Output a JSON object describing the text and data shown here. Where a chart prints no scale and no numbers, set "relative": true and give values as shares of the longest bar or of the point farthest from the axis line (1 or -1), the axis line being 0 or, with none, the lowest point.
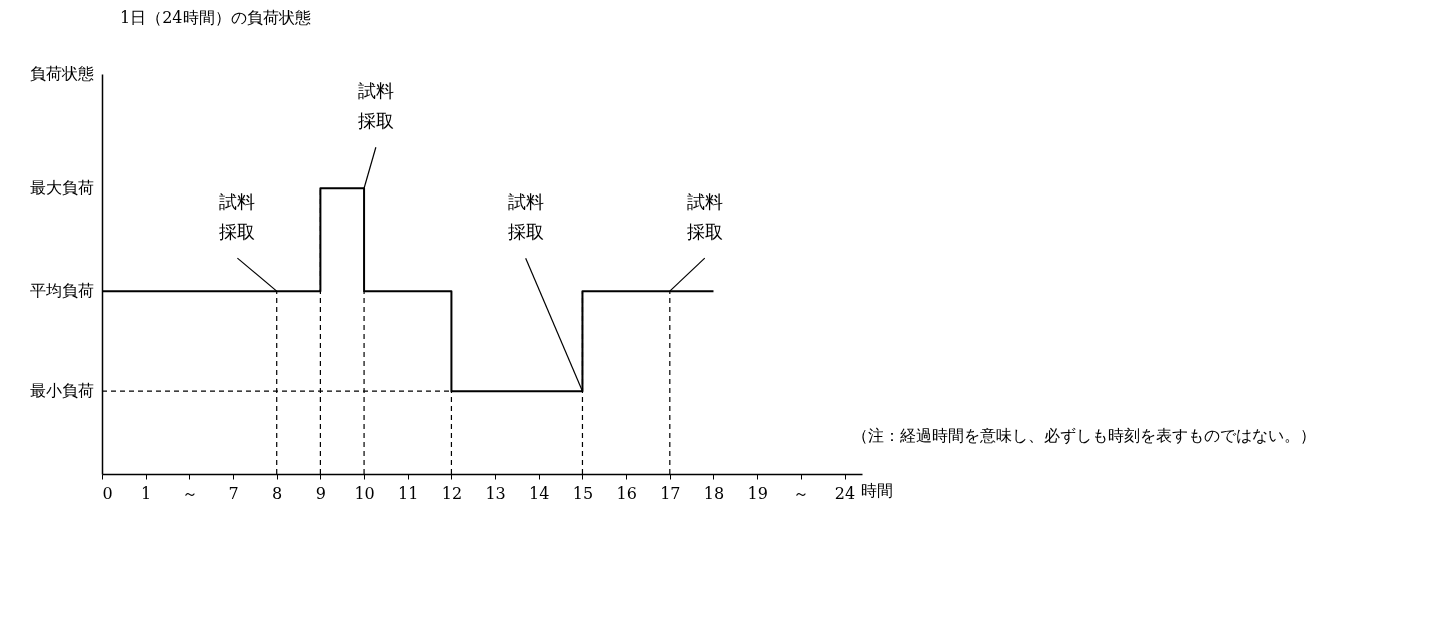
{
  "chart_data": {
    "type": "step",
    "relative": true,
    "title": "1日（24時間）の負荷状態",
    "xlabel": "時間",
    "categories": [
      "0",
      "1",
      "～",
      "7",
      "8",
      "9",
      "10",
      "11",
      "12",
      "13",
      "14",
      "15",
      "16",
      "17",
      "18",
      "19",
      "～",
      "24"
    ],
    "series": [
      {
        "color": "#000000",
        "values": [
          0.64,
          0.64,
          0.64,
          0.64,
          0.64,
          1,
          0.64,
          0.64,
          0.29,
          0.29,
          0.29,
          0.64,
          0.64,
          0.64,
          0.64,
          null,
          null,
          null
        ]
      }
    ],
    "ref_lines": [
      {
        "axis": "x",
        "value": "8",
        "line_style": "dashed"
      },
      {
        "axis": "x",
        "value": "9",
        "line_style": "dashed"
      },
      {
        "axis": "x",
        "value": "10",
        "line_style": "dashed"
      },
      {
        "axis": "x",
        "value": "12",
        "line_style": "dashed"
      },
      {
        "axis": "x",
        "value": "15",
        "line_style": "dashed"
      },
      {
        "axis": "x",
        "value": "17",
        "line_style": "dashed"
      },
      {
        "axis": "y",
        "value": 0.29,
        "line_style": "dashed"
      }
    ],
    "annotations": [
      "負荷状態",
      "最大負荷",
      "平均負荷",
      "最小負荷",
      {
        "text": "試料採取",
        "x": "8",
        "y": 0.64
      },
      {
        "text": "試料採取",
        "x": "10",
        "y": 1
      },
      {
        "text": "試料採取",
        "x": "15",
        "y": 0.29
      },
      {
        "text": "試料採取",
        "x": "17",
        "y": 0.64
      },
      "（注：経過時間を意味し、必ずしも時刻を表すものではない。）"
    ],
    "grid": false
  }
}
